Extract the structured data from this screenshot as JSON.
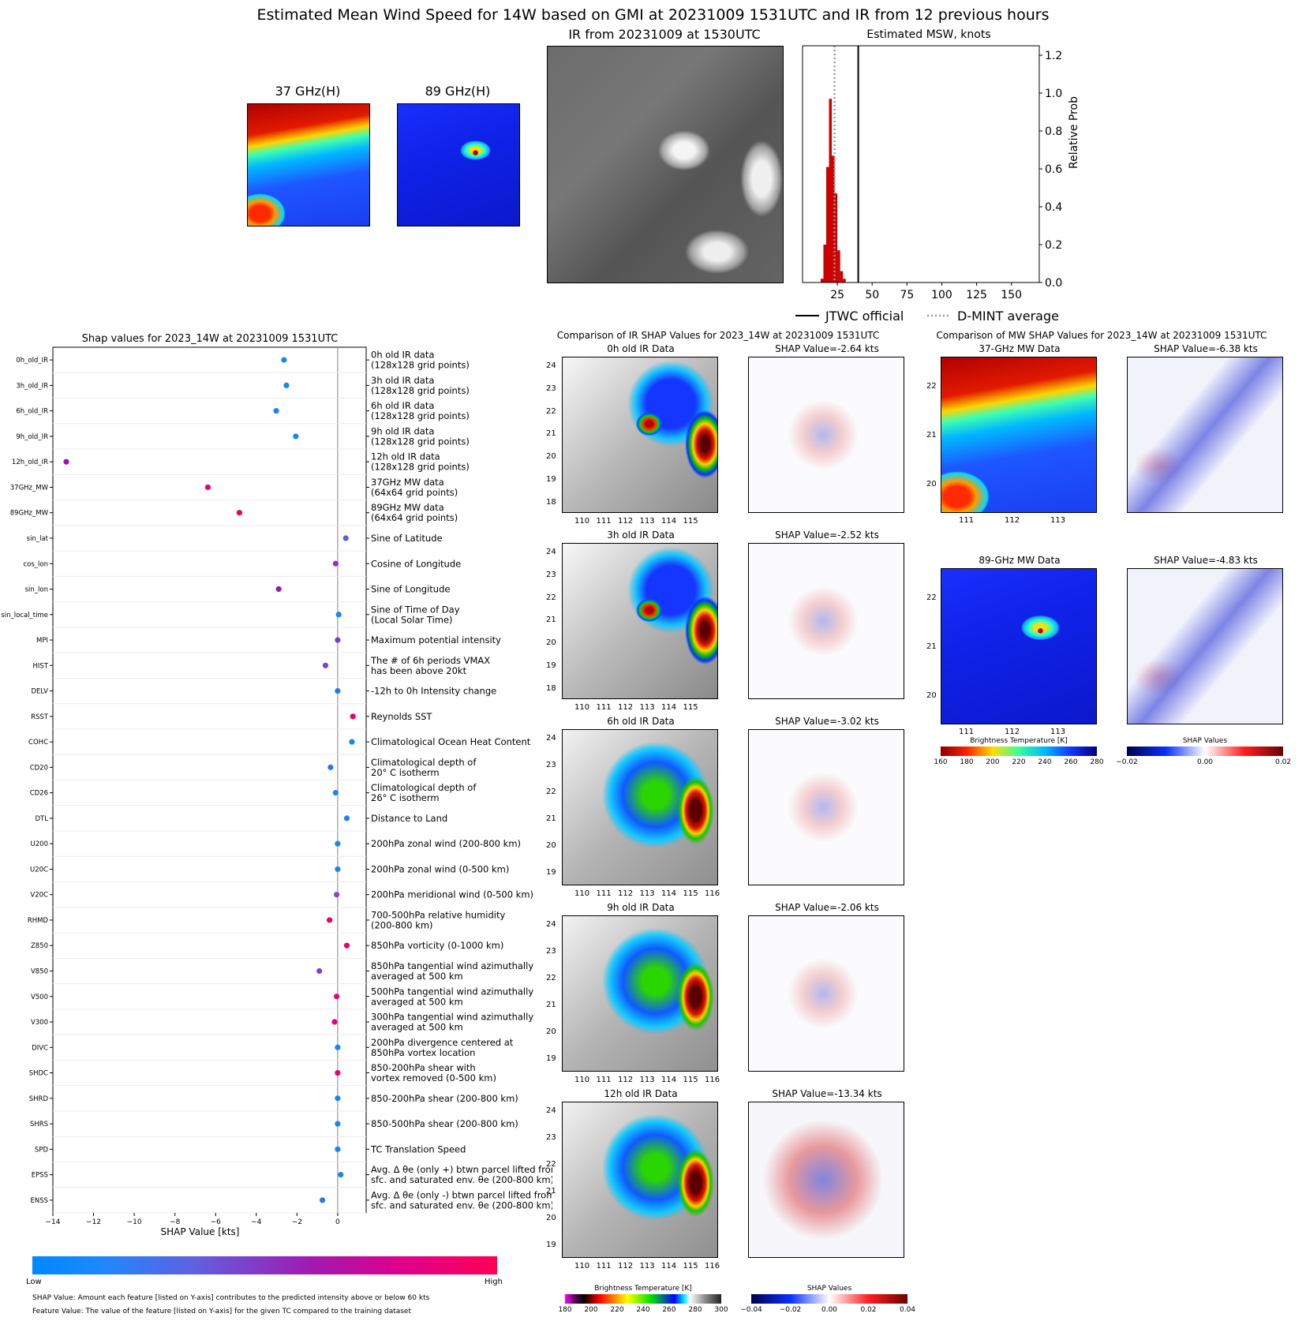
{
  "header": {
    "title": "Estimated Mean Wind Speed for 14W based on GMI at 20231009 1531UTC and IR from 12 previous hours",
    "mw37_title": "37 GHz(H)",
    "mw89_title": "89 GHz(H)",
    "ir_title": "IR from 20231009 at 1530UTC",
    "msw_title": "Estimated MSW, knots"
  },
  "msw_chart": {
    "type": "bar",
    "ylabel": "Relative Prob",
    "x_ticks": [
      "25",
      "50",
      "75",
      "100",
      "125",
      "150"
    ],
    "y_ticks": [
      "0.0",
      "0.2",
      "0.4",
      "0.6",
      "0.8",
      "1.0",
      "1.2"
    ],
    "xlim": [
      0,
      170
    ],
    "ylim": [
      0,
      1.25
    ],
    "bins": [
      {
        "x": 14,
        "v": 0.02
      },
      {
        "x": 16,
        "v": 0.2
      },
      {
        "x": 18,
        "v": 0.61
      },
      {
        "x": 20,
        "v": 0.97
      },
      {
        "x": 22,
        "v": 0.67
      },
      {
        "x": 24,
        "v": 0.47
      },
      {
        "x": 26,
        "v": 0.17
      },
      {
        "x": 28,
        "v": 0.06
      },
      {
        "x": 30,
        "v": 0.02
      }
    ],
    "bin_width": 2,
    "jtwc_official": 40,
    "dmint_average": 23,
    "legend": {
      "jtwc": "JTWC official",
      "dmint": "D-MINT average"
    }
  },
  "shap_chart": {
    "type": "scatter",
    "title": "Shap values for 2023_14W at 20231009 1531UTC",
    "xlabel": "SHAP Value [kts]",
    "xlim": [
      -14,
      1.4
    ],
    "x_ticks": [
      -14,
      -12,
      -10,
      -8,
      -6,
      -4,
      -2,
      0
    ],
    "x_tick_labels": [
      "−14",
      "−12",
      "−10",
      "−8",
      "−6",
      "−4",
      "−2",
      "0"
    ],
    "features": [
      {
        "name": "0h_old_IR",
        "desc": [
          "0h old IR data",
          "(128x128 grid points)"
        ],
        "value": -2.64,
        "color": "#1a86f0"
      },
      {
        "name": "3h_old_IR",
        "desc": [
          "3h old IR data",
          "(128x128 grid points)"
        ],
        "value": -2.52,
        "color": "#1a86f0"
      },
      {
        "name": "6h_old_IR",
        "desc": [
          "6h old IR data",
          "(128x128 grid points)"
        ],
        "value": -3.02,
        "color": "#1a86f0"
      },
      {
        "name": "9h_old_IR",
        "desc": [
          "9h old IR data",
          "(128x128 grid points)"
        ],
        "value": -2.06,
        "color": "#1a86f0"
      },
      {
        "name": "12h_old_IR",
        "desc": [
          "12h old IR data",
          "(128x128 grid points)"
        ],
        "value": -13.34,
        "color": "#a010b8"
      },
      {
        "name": "37GHz_MW",
        "desc": [
          "37GHz MW data",
          "(64x64 grid points)"
        ],
        "value": -6.38,
        "color": "#e8007a"
      },
      {
        "name": "89GHz_MW",
        "desc": [
          "89GHz MW data",
          "(64x64 grid points)"
        ],
        "value": -4.83,
        "color": "#f0005c"
      },
      {
        "name": "sin_lat",
        "desc": [
          "Sine of Latitude"
        ],
        "value": 0.4,
        "color": "#5a5ee0"
      },
      {
        "name": "cos_lon",
        "desc": [
          "Cosine of Longitude"
        ],
        "value": -0.1,
        "color": "#9a2cc0"
      },
      {
        "name": "sin_lon",
        "desc": [
          "Sine of Longitude"
        ],
        "value": -2.9,
        "color": "#9a18b0"
      },
      {
        "name": "sin_local_time",
        "desc": [
          "Sine of Time of Day",
          "(Local Solar Time)"
        ],
        "value": 0.05,
        "color": "#1a86f0"
      },
      {
        "name": "MPI",
        "desc": [
          "Maximum potential intensity"
        ],
        "value": 0.0,
        "color": "#7040d0"
      },
      {
        "name": "HIST",
        "desc": [
          "The # of 6h periods VMAX",
          "has been above 20kt"
        ],
        "value": -0.6,
        "color": "#7a40d0"
      },
      {
        "name": "DELV",
        "desc": [
          "-12h to 0h Intensity change"
        ],
        "value": 0.0,
        "color": "#2a78ee"
      },
      {
        "name": "RSST",
        "desc": [
          "Reynolds SST"
        ],
        "value": 0.75,
        "color": "#f0005c"
      },
      {
        "name": "COHC",
        "desc": [
          "Climatological Ocean Heat Content"
        ],
        "value": 0.7,
        "color": "#1a86f0"
      },
      {
        "name": "CD20",
        "desc": [
          "Climatological depth of",
          "20° C isotherm"
        ],
        "value": -0.35,
        "color": "#2a78ee"
      },
      {
        "name": "CD26",
        "desc": [
          "Climatological depth of",
          "26° C isotherm"
        ],
        "value": -0.1,
        "color": "#1a86f0"
      },
      {
        "name": "DTL",
        "desc": [
          "Distance to Land"
        ],
        "value": 0.45,
        "color": "#1a86f0"
      },
      {
        "name": "U200",
        "desc": [
          "200hPa zonal wind (200-800 km)"
        ],
        "value": 0.0,
        "color": "#1a86f0"
      },
      {
        "name": "U20C",
        "desc": [
          "200hPa zonal wind (0-500 km)"
        ],
        "value": 0.0,
        "color": "#1a86f0"
      },
      {
        "name": "V20C",
        "desc": [
          "200hPa meridional wind (0-500 km)"
        ],
        "value": -0.05,
        "color": "#9a40c8"
      },
      {
        "name": "RHMD",
        "desc": [
          "700-500hPa relative humidity",
          "(200-800 km)"
        ],
        "value": -0.4,
        "color": "#f0005c"
      },
      {
        "name": "Z850",
        "desc": [
          "850hPa vorticity (0-1000 km)"
        ],
        "value": 0.45,
        "color": "#f0005c"
      },
      {
        "name": "V850",
        "desc": [
          "850hPa tangential wind azimuthally",
          "averaged at 500 km"
        ],
        "value": -0.9,
        "color": "#8040d0"
      },
      {
        "name": "V500",
        "desc": [
          "500hPa tangential wind azimuthally",
          "averaged at 500 km"
        ],
        "value": -0.05,
        "color": "#e8007a"
      },
      {
        "name": "V300",
        "desc": [
          "300hPa tangential wind azimuthally",
          "averaged at 500 km"
        ],
        "value": -0.15,
        "color": "#e8007a"
      },
      {
        "name": "DIVC",
        "desc": [
          "200hPa divergence centered at",
          "850hPa vortex location"
        ],
        "value": 0.0,
        "color": "#1a86f0"
      },
      {
        "name": "SHDC",
        "desc": [
          "850-200hPa shear with",
          "vortex removed (0-500 km)"
        ],
        "value": 0.0,
        "color": "#e8007a"
      },
      {
        "name": "SHRD",
        "desc": [
          "850-200hPa shear (200-800 km)"
        ],
        "value": 0.0,
        "color": "#1a86f0"
      },
      {
        "name": "SHRS",
        "desc": [
          "850-500hPa shear (200-800 km)"
        ],
        "value": 0.0,
        "color": "#1a86f0"
      },
      {
        "name": "SPD",
        "desc": [
          "TC Translation Speed"
        ],
        "value": 0.0,
        "color": "#1a86f0"
      },
      {
        "name": "EPSS",
        "desc": [
          "Avg. Δ θe (only +) btwn parcel lifted from",
          "sfc. and saturated env. θe (200-800 km)"
        ],
        "value": 0.15,
        "color": "#1a86f0"
      },
      {
        "name": "ENSS",
        "desc": [
          "Avg. Δ θe (only -) btwn parcel lifted from",
          "sfc. and saturated env. θe (200-800 km)"
        ],
        "value": -0.75,
        "color": "#2a78ee"
      }
    ]
  },
  "feature_colorbar": {
    "low": "Low",
    "high": "High"
  },
  "footnotes": {
    "line1": "SHAP Value: Amount each feature [listed on Y-axis] contributes to the predicted intensity above or below 60 kts",
    "line2": "Feature Value: The value of the feature [listed on Y-axis] for the given TC compared to the training dataset"
  },
  "ir_comparison": {
    "title": "Comparison of IR SHAP Values for 2023_14W at 20231009 1531UTC",
    "panels": [
      {
        "data_title": "0h old IR Data",
        "shap_title": "SHAP Value=-2.64 kts",
        "y_ticks": [
          "24",
          "23",
          "22",
          "21",
          "20",
          "19",
          "18"
        ],
        "x_ticks": [
          "110",
          "111",
          "112",
          "113",
          "114",
          "115"
        ]
      },
      {
        "data_title": "3h old IR Data",
        "shap_title": "SHAP Value=-2.52 kts",
        "y_ticks": [
          "24",
          "23",
          "22",
          "21",
          "20",
          "19",
          "18"
        ],
        "x_ticks": [
          "110",
          "111",
          "112",
          "113",
          "114",
          "115"
        ]
      },
      {
        "data_title": "6h old IR Data",
        "shap_title": "SHAP Value=-3.02 kts",
        "y_ticks": [
          "24",
          "23",
          "22",
          "21",
          "20",
          "19"
        ],
        "x_ticks": [
          "110",
          "111",
          "112",
          "113",
          "114",
          "115",
          "116"
        ]
      },
      {
        "data_title": "9h old IR Data",
        "shap_title": "SHAP Value=-2.06 kts",
        "y_ticks": [
          "24",
          "23",
          "22",
          "21",
          "20",
          "19"
        ],
        "x_ticks": [
          "110",
          "111",
          "112",
          "113",
          "114",
          "115",
          "116"
        ]
      },
      {
        "data_title": "12h old IR Data",
        "shap_title": "SHAP Value=-13.34 kts",
        "y_ticks": [
          "24",
          "23",
          "22",
          "21",
          "20",
          "19"
        ],
        "x_ticks": [
          "110",
          "111",
          "112",
          "113",
          "114",
          "115",
          "116"
        ]
      }
    ],
    "ir_cbar_label": "Brightness Temperature [K]",
    "ir_cbar_ticks": [
      "180",
      "200",
      "220",
      "240",
      "260",
      "280",
      "300"
    ],
    "shap_cbar_label": "SHAP Values",
    "shap_cbar_ticks": [
      "−0.04",
      "−0.02",
      "0.00",
      "0.02",
      "0.04"
    ]
  },
  "mw_comparison": {
    "title": "Comparison of MW SHAP Values for 2023_14W at 20231009 1531UTC",
    "panels": [
      {
        "data_title": "37-GHz MW Data",
        "shap_title": "SHAP Value=-6.38 kts",
        "y_ticks": [
          "22",
          "21",
          "20"
        ],
        "x_ticks": [
          "111",
          "112",
          "113"
        ]
      },
      {
        "data_title": "89-GHz MW Data",
        "shap_title": "SHAP Value=-4.83 kts",
        "y_ticks": [
          "22",
          "21",
          "20"
        ],
        "x_ticks": [
          "111",
          "112",
          "113"
        ]
      }
    ],
    "mw_cbar_label": "Brightness Temperature [K]",
    "mw_cbar_ticks": [
      "160",
      "180",
      "200",
      "220",
      "240",
      "260",
      "280"
    ],
    "shap_cbar_label": "SHAP Values",
    "shap_cbar_ticks": [
      "−0.02",
      "0.00",
      "0.02"
    ]
  }
}
